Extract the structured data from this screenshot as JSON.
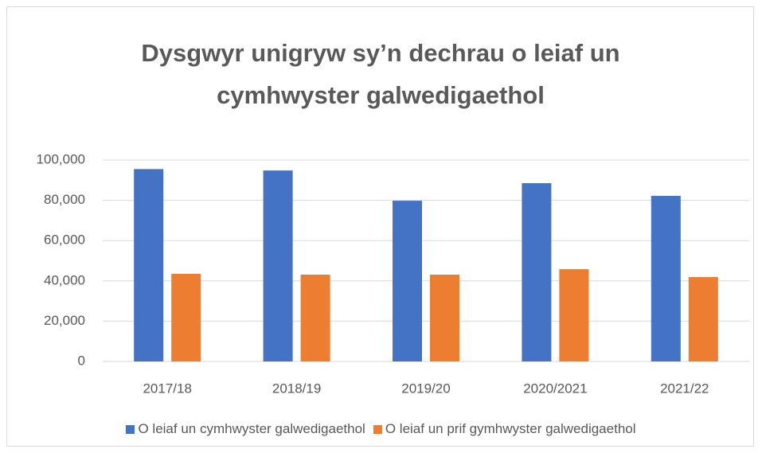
{
  "chart_data": {
    "type": "bar",
    "title": "Dysgwyr unigryw sy’n dechrau o leiaf un cymhwyster galwedigaethol",
    "categories": [
      "2017/18",
      "2018/19",
      "2019/20",
      "2020/2021",
      "2021/22"
    ],
    "series": [
      {
        "name": "O leiaf un cymhwyster galwedigaethol",
        "color": "#4472c4",
        "values": [
          95500,
          94800,
          79800,
          88500,
          82200
        ]
      },
      {
        "name": "O leiaf un prif gymhwyster galwedigaethol",
        "color": "#ed7d31",
        "values": [
          43500,
          43100,
          43100,
          45800,
          41900
        ]
      }
    ],
    "ylim": [
      0,
      100000
    ],
    "yticks": [
      0,
      {
        "value": 20000,
        "label": "20,000"
      },
      {
        "value": 40000,
        "label": "40,000"
      },
      {
        "value": 60000,
        "label": "60,000"
      },
      {
        "value": 80000,
        "label": "80,000"
      },
      {
        "value": 100000,
        "label": "100,000"
      }
    ],
    "grid": true,
    "legend": "bottom"
  }
}
